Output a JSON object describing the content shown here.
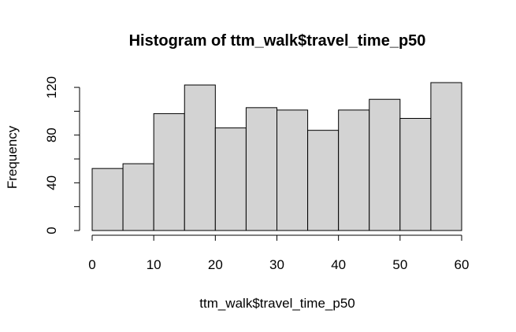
{
  "chart_data": {
    "type": "bar",
    "title": "Histogram of ttm_walk$travel_time_p50",
    "xlabel": "ttm_walk$travel_time_p50",
    "ylabel": "Frequency",
    "bins": [
      {
        "x0": 0,
        "x1": 5,
        "count": 52
      },
      {
        "x0": 5,
        "x1": 10,
        "count": 56
      },
      {
        "x0": 10,
        "x1": 15,
        "count": 98
      },
      {
        "x0": 15,
        "x1": 20,
        "count": 122
      },
      {
        "x0": 20,
        "x1": 25,
        "count": 86
      },
      {
        "x0": 25,
        "x1": 30,
        "count": 103
      },
      {
        "x0": 30,
        "x1": 35,
        "count": 101
      },
      {
        "x0": 35,
        "x1": 40,
        "count": 84
      },
      {
        "x0": 40,
        "x1": 45,
        "count": 101
      },
      {
        "x0": 45,
        "x1": 50,
        "count": 110
      },
      {
        "x0": 50,
        "x1": 55,
        "count": 94
      },
      {
        "x0": 55,
        "x1": 60,
        "count": 124
      }
    ],
    "x_ticks": [
      0,
      10,
      20,
      30,
      40,
      50,
      60
    ],
    "y_ticks": [
      0,
      40,
      80,
      120
    ],
    "y_minor_ticks": [
      20,
      60,
      100
    ],
    "xlim": [
      0,
      60
    ],
    "ylim": [
      0,
      124
    ],
    "bar_color": "#d3d3d3",
    "grid": false
  }
}
